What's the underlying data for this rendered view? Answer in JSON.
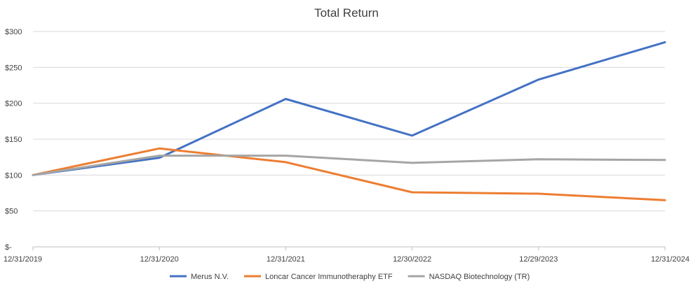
{
  "chart_data": {
    "type": "line",
    "title": "Total Return",
    "categories": [
      "12/31/2019",
      "12/31/2020",
      "12/31/2021",
      "12/30/2022",
      "12/29/2023",
      "12/31/2024"
    ],
    "y_ticks": [
      0,
      50,
      100,
      150,
      200,
      250,
      300
    ],
    "y_tick_labels": [
      "$-",
      "$50",
      "$100",
      "$150",
      "$200",
      "$250",
      "$300"
    ],
    "ylim": [
      0,
      300
    ],
    "grid": true,
    "legend_position": "bottom",
    "series": [
      {
        "name": "Merus N.V.",
        "color": "#4472c4",
        "values": [
          100,
          124,
          206,
          155,
          233,
          285
        ]
      },
      {
        "name": "Loncar Cancer Immunotheraphy ETF",
        "color": "#ed7d31",
        "values": [
          100,
          137,
          118,
          76,
          74,
          65
        ]
      },
      {
        "name": "NASDAQ Biotechnology (TR)",
        "color": "#a5a5a5",
        "values": [
          100,
          127,
          127,
          117,
          122,
          121
        ]
      }
    ]
  }
}
